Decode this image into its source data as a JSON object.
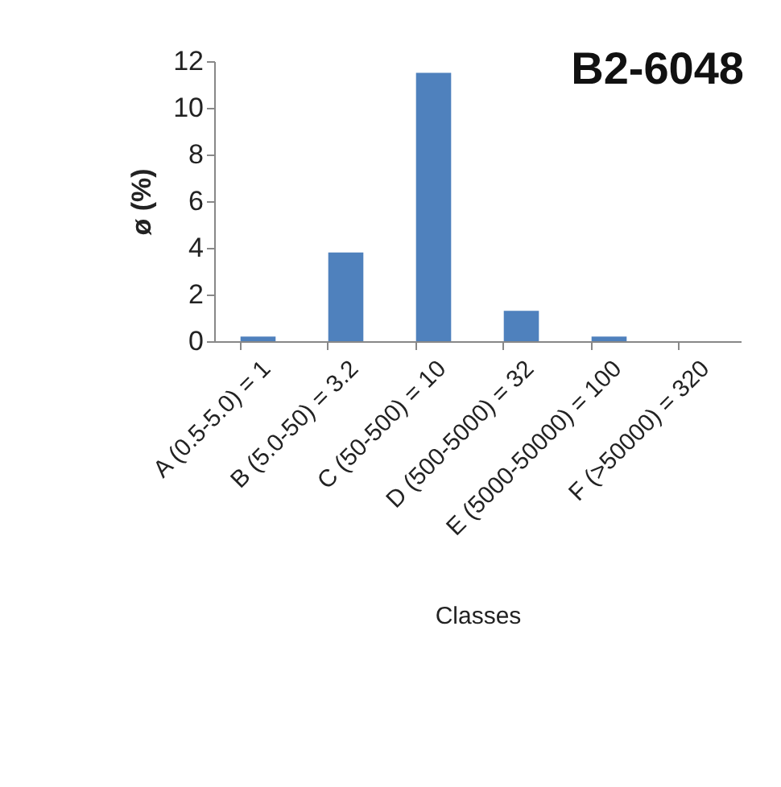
{
  "chart_data": {
    "type": "bar",
    "title": "B2-6048",
    "xlabel": "Classes",
    "ylabel": "ø (%)",
    "categories": [
      "A (0.5-5.0) = 1",
      "B (5.0-50) = 3.2",
      "C (50-500) = 10",
      "D (500-5000) = 32",
      "E (5000-50000) = 100",
      "F (>50000) = 320"
    ],
    "values": [
      0.2,
      3.8,
      11.5,
      1.3,
      0.2,
      0
    ],
    "color": "#4f81bd",
    "ylim": [
      0,
      12
    ],
    "yticks": [
      0,
      2,
      4,
      6,
      8,
      10,
      12
    ],
    "grid": false
  }
}
